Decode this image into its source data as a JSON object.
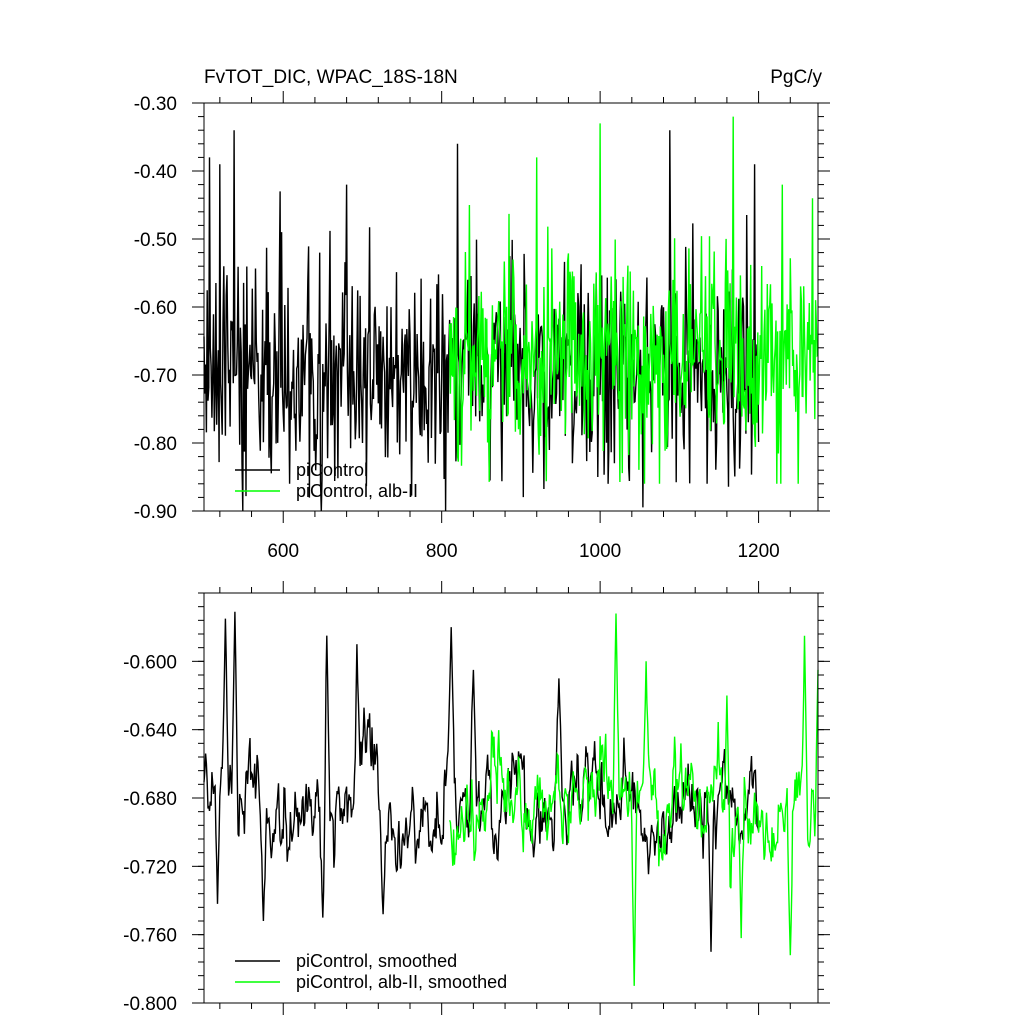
{
  "figure": {
    "title_left": "FvTOT_DIC, WPAC_18S-18N",
    "title_right": "PgC/y"
  },
  "colors": {
    "piControl": "#000000",
    "alb_II": "#00ff00"
  },
  "chart_data": [
    {
      "type": "line",
      "title": "FvTOT_DIC, WPAC_18S-18N",
      "units": "PgC/y",
      "xlim": [
        500,
        1275
      ],
      "ylim": [
        -0.9,
        -0.3
      ],
      "x_ticks": [
        600,
        800,
        1000,
        1200
      ],
      "x_tick_labels": [
        "600",
        "800",
        "1000",
        "1200"
      ],
      "y_ticks": [
        -0.3,
        -0.4,
        -0.5,
        -0.6,
        -0.7,
        -0.8,
        -0.9
      ],
      "y_tick_labels": [
        "-0.30",
        "-0.40",
        "-0.50",
        "-0.60",
        "-0.70",
        "-0.80",
        "-0.90"
      ],
      "grid": false,
      "legend_position": "bottom-left",
      "series": [
        {
          "name": "piControl",
          "color": "#000000",
          "x_range": [
            500,
            1200
          ],
          "approx_mean": -0.7,
          "approx_range": [
            -0.9,
            -0.34
          ],
          "notable_peaks": [
            [
              507,
              -0.38
            ],
            [
              520,
              -0.39
            ],
            [
              538,
              -0.34
            ],
            [
              596,
              -0.43
            ],
            [
              680,
              -0.42
            ],
            [
              820,
              -0.36
            ],
            [
              1088,
              -0.34
            ],
            [
              1195,
              -0.39
            ]
          ],
          "notable_troughs": [
            [
              548,
              -0.83
            ],
            [
              608,
              -0.86
            ],
            [
              648,
              -0.9
            ],
            [
              1010,
              -0.86
            ],
            [
              1135,
              -0.86
            ]
          ]
        },
        {
          "name": "piControl, alb-II",
          "color": "#00ff00",
          "x_range": [
            810,
            1275
          ],
          "approx_mean": -0.68,
          "approx_range": [
            -0.86,
            -0.32
          ],
          "notable_peaks": [
            [
              835,
              -0.45
            ],
            [
              920,
              -0.38
            ],
            [
              1000,
              -0.33
            ],
            [
              1168,
              -0.32
            ],
            [
              1230,
              -0.42
            ],
            [
              1268,
              -0.44
            ]
          ],
          "notable_troughs": [
            [
              1075,
              -0.86
            ],
            [
              1228,
              -0.86
            ]
          ]
        }
      ]
    },
    {
      "type": "line",
      "xlim": [
        500,
        1275
      ],
      "ylim": [
        -0.8,
        -0.56
      ],
      "x_ticks": [
        600,
        800,
        1000,
        1200
      ],
      "y_ticks": [
        -0.6,
        -0.64,
        -0.68,
        -0.72,
        -0.76,
        -0.8
      ],
      "y_tick_labels": [
        "-0.600",
        "-0.640",
        "-0.680",
        "-0.720",
        "-0.760",
        "-0.800"
      ],
      "grid": false,
      "legend_position": "bottom-left",
      "series": [
        {
          "name": "piControl, smoothed",
          "color": "#000000",
          "x_range": [
            500,
            1200
          ],
          "approx_mean": -0.685,
          "approx_range": [
            -0.77,
            -0.57
          ],
          "notable_peaks": [
            [
              527,
              -0.575
            ],
            [
              539,
              -0.571
            ],
            [
              655,
              -0.585
            ],
            [
              693,
              -0.59
            ],
            [
              812,
              -0.58
            ],
            [
              840,
              -0.605
            ],
            [
              948,
              -0.61
            ]
          ],
          "notable_troughs": [
            [
              517,
              -0.742
            ],
            [
              575,
              -0.752
            ],
            [
              650,
              -0.75
            ],
            [
              726,
              -0.748
            ],
            [
              1140,
              -0.77
            ]
          ]
        },
        {
          "name": "piControl, alb-II, smoothed",
          "color": "#00ff00",
          "x_range": [
            810,
            1275
          ],
          "approx_mean": -0.685,
          "approx_range": [
            -0.79,
            -0.57
          ],
          "notable_peaks": [
            [
              1020,
              -0.572
            ],
            [
              1058,
              -0.6
            ],
            [
              1160,
              -0.62
            ],
            [
              1258,
              -0.585
            ],
            [
              1275,
              -0.605
            ]
          ],
          "notable_troughs": [
            [
              1043,
              -0.79
            ],
            [
              1178,
              -0.762
            ],
            [
              1240,
              -0.772
            ]
          ]
        }
      ]
    }
  ]
}
